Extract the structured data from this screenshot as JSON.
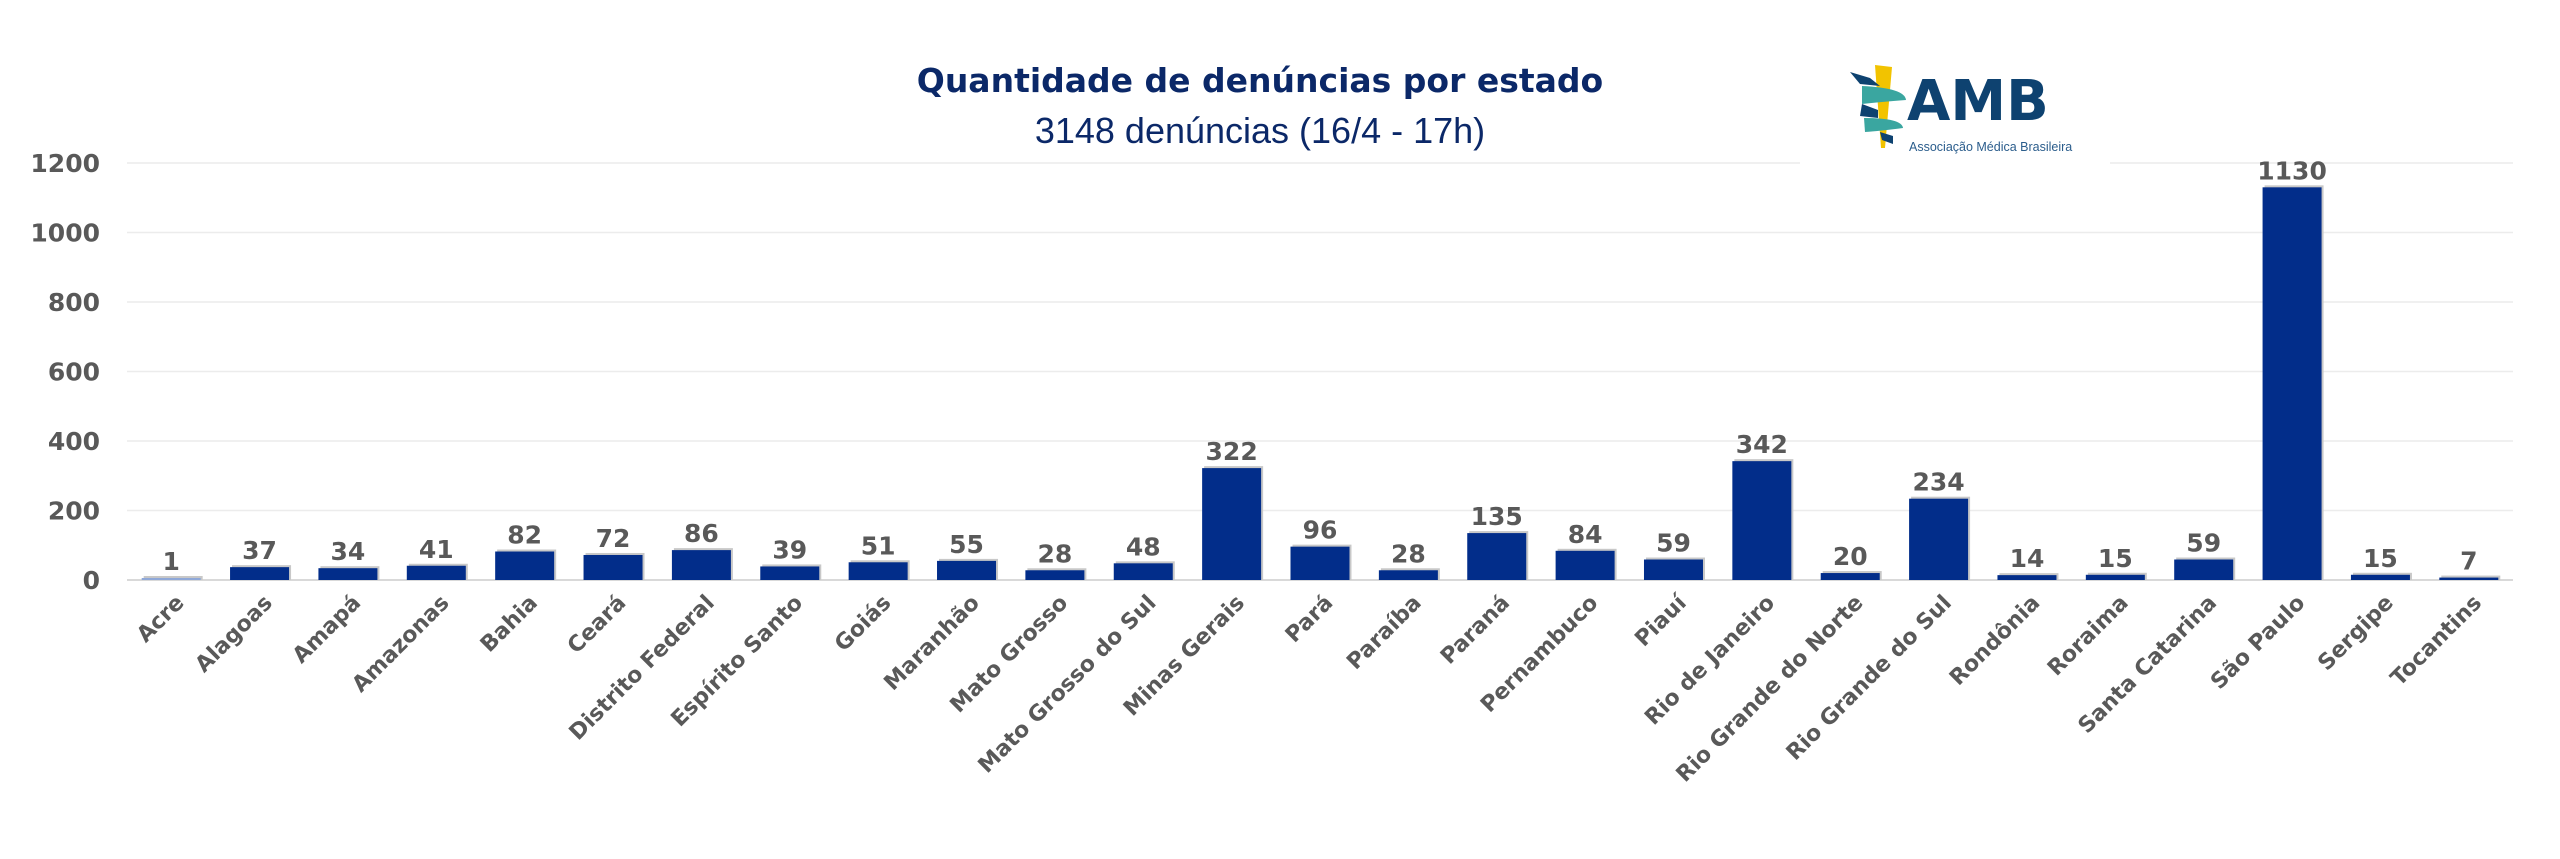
{
  "logo": {
    "name": "AMB",
    "tagline": "Associação Médica Brasileira"
  },
  "chart_data": {
    "type": "bar",
    "title": "Quantidade de denúncias por estado",
    "subtitle": "3148 denúncias (16/4 - 17h)",
    "xlabel": "",
    "ylabel": "",
    "ylim": [
      0,
      1200
    ],
    "yticks": [
      0,
      200,
      400,
      600,
      800,
      1000,
      1200
    ],
    "grid": true,
    "legend": "none",
    "bar_color": "#022d8a",
    "highlight_color": "#8fa8d8",
    "categories": [
      "Acre",
      "Alagoas",
      "Amapá",
      "Amazonas",
      "Bahia",
      "Ceará",
      "Distrito Federal",
      "Espírito Santo",
      "Goiás",
      "Maranhão",
      "Mato Grosso",
      "Mato Grosso do Sul",
      "Minas Gerais",
      "Pará",
      "Paraíba",
      "Paraná",
      "Pernambuco",
      "Piauí",
      "Rio de Janeiro",
      "Rio Grande do Norte",
      "Rio Grande do Sul",
      "Rondônia",
      "Roraima",
      "Santa Catarina",
      "São Paulo",
      "Sergipe",
      "Tocantins"
    ],
    "values": [
      1,
      37,
      34,
      41,
      82,
      72,
      86,
      39,
      51,
      55,
      28,
      48,
      322,
      96,
      28,
      135,
      84,
      59,
      342,
      20,
      234,
      14,
      15,
      59,
      1130,
      15,
      7
    ]
  }
}
